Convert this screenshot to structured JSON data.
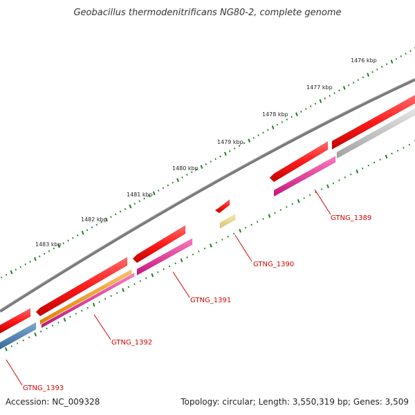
{
  "title": "Geobacillus thermodenitrificans NG80-2, complete genome",
  "footer": {
    "accession": "Accession: NC_009328",
    "stats": "Topology: circular; Length: 3,550,319 bp; Genes: 3,509"
  },
  "ticks": [
    {
      "label": "1476 kbp"
    },
    {
      "label": "1477 kbp"
    },
    {
      "label": "1478 kbp"
    },
    {
      "label": "1479 kbp"
    },
    {
      "label": "1480 kbp"
    },
    {
      "label": "1481 kbp"
    },
    {
      "label": "1482 kbp"
    },
    {
      "label": "1483 kbp"
    }
  ],
  "gene_labels": [
    "GTNG_1389",
    "GTNG_1390",
    "GTNG_1391",
    "GTNG_1392",
    "GTNG_1393"
  ],
  "colors": {
    "backbone": "#7a7a7a",
    "cds": "#ff1a1a",
    "magenta_feature": "#e8218c",
    "orange_feature": "#f59a1a",
    "grey_feature": "#bdbdbd",
    "blue_feature": "#4a7fb3",
    "khaki_feature": "#eadb8a",
    "tick": "#1e7a1e",
    "label": "#d40000"
  }
}
